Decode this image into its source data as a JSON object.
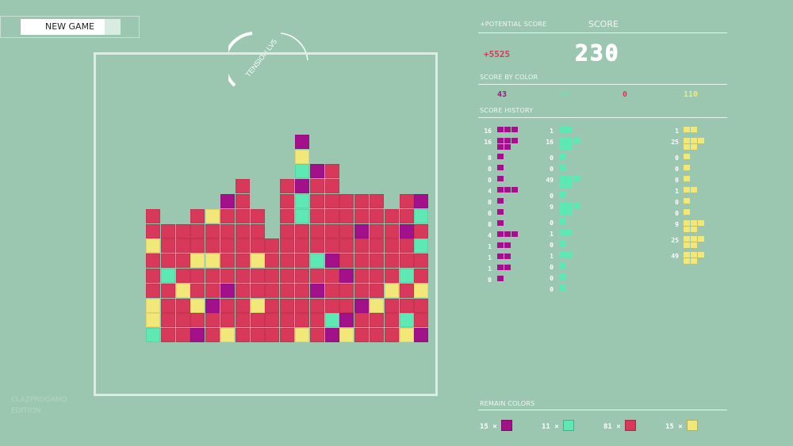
{
  "toolbar": {
    "new_game_label": "NEW GAME"
  },
  "tension_label": "TENSION LV5",
  "score_panel": {
    "potential_label": "+POTENTIAL SCORE",
    "score_label": "SCORE",
    "potential_value": "+5525",
    "score_value": "230",
    "by_color_label": "SCORE BY COLOR",
    "by_color": [
      {
        "value": "43",
        "color": "#a2118a"
      },
      {
        "value": "77",
        "color": "#5ee8b4"
      },
      {
        "value": "0",
        "color": "#d8395a"
      },
      {
        "value": "110",
        "color": "#f2e87a"
      }
    ],
    "history_label": "SCORE HISTORY",
    "remain_label": "REMAIN COLORS",
    "remain": [
      {
        "count": "15",
        "x": "×",
        "color": "#a2118a"
      },
      {
        "count": "11",
        "x": "×",
        "color": "#5ee8b4"
      },
      {
        "count": "81",
        "x": "×",
        "color": "#d8395a"
      },
      {
        "count": "15",
        "x": "×",
        "color": "#f2e87a"
      }
    ]
  },
  "history": {
    "purple": {
      "color": "#a2118a",
      "entries": [
        {
          "n": "16",
          "w": 3,
          "h": 1
        },
        {
          "n": "16",
          "w": 3,
          "h": 2
        },
        {
          "n": "0",
          "w": 1,
          "h": 1
        },
        {
          "n": "0",
          "w": 1,
          "h": 1
        },
        {
          "n": "0",
          "w": 1,
          "h": 1
        },
        {
          "n": "4",
          "w": 3,
          "h": 1
        },
        {
          "n": "0",
          "w": 1,
          "h": 1
        },
        {
          "n": "0",
          "w": 1,
          "h": 1
        },
        {
          "n": "0",
          "w": 1,
          "h": 1
        },
        {
          "n": "4",
          "w": 3,
          "h": 1
        },
        {
          "n": "1",
          "w": 2,
          "h": 1
        },
        {
          "n": "1",
          "w": 2,
          "h": 1
        },
        {
          "n": "1",
          "w": 2,
          "h": 1
        },
        {
          "n": "0",
          "w": 1,
          "h": 1
        }
      ]
    },
    "cyan": {
      "color": "#5ee8b4",
      "entries": [
        {
          "n": "1",
          "w": 2,
          "h": 1
        },
        {
          "n": "16",
          "w": 3,
          "h": 2
        },
        {
          "n": "0",
          "w": 1,
          "h": 1
        },
        {
          "n": "0",
          "w": 1,
          "h": 1
        },
        {
          "n": "49",
          "w": 3,
          "h": 2
        },
        {
          "n": "0",
          "w": 1,
          "h": 1
        },
        {
          "n": "9",
          "w": 3,
          "h": 2
        },
        {
          "n": "0",
          "w": 1,
          "h": 1
        },
        {
          "n": "1",
          "w": 2,
          "h": 1
        },
        {
          "n": "0",
          "w": 1,
          "h": 1
        },
        {
          "n": "1",
          "w": 2,
          "h": 1
        },
        {
          "n": "0",
          "w": 1,
          "h": 1
        },
        {
          "n": "0",
          "w": 1,
          "h": 1
        },
        {
          "n": "0",
          "w": 1,
          "h": 1
        }
      ]
    },
    "yellow": {
      "color": "#f2e87a",
      "entries": [
        {
          "n": "1",
          "w": 2,
          "h": 1
        },
        {
          "n": "25",
          "w": 3,
          "h": 2
        },
        {
          "n": "0",
          "w": 1,
          "h": 1
        },
        {
          "n": "0",
          "w": 1,
          "h": 1
        },
        {
          "n": "0",
          "w": 1,
          "h": 1
        },
        {
          "n": "1",
          "w": 2,
          "h": 1
        },
        {
          "n": "0",
          "w": 1,
          "h": 1
        },
        {
          "n": "0",
          "w": 1,
          "h": 1
        },
        {
          "n": "9",
          "w": 3,
          "h": 2
        },
        {
          "n": "25",
          "w": 3,
          "h": 2
        },
        {
          "n": "49",
          "w": 3,
          "h": 2
        }
      ]
    }
  },
  "board": {
    "palette": {
      "P": "#a2118a",
      "C": "#5ee8b4",
      "R": "#d8395a",
      "Y": "#f2e87a"
    },
    "columns": [
      "CYYRRRYRR",
      "RRRRCRRR",
      "RRRYRRRR",
      "PRYRRYRRR",
      "RRPRRYRRY",
      "YRRPRRRRRP",
      "RRRRRRRRRRR",
      "RRYRRYRRR",
      "RRRRRRR",
      "RRRRRRRRRRR",
      "YRRRRRRRCCPCYP",
      "RRRPRCRRRRRP",
      "PCRRRPRRRRRR",
      "YPRRPRRRRR",
      "RRPRRRRPRR",
      "RRYRRRRRRR",
      "RRRYRRRRR",
      "YCRRCRRPRR",
      "PRRYRRCRCP"
    ]
  },
  "watermark": [
    "CLAZPROGAMO",
    "EDITION"
  ]
}
